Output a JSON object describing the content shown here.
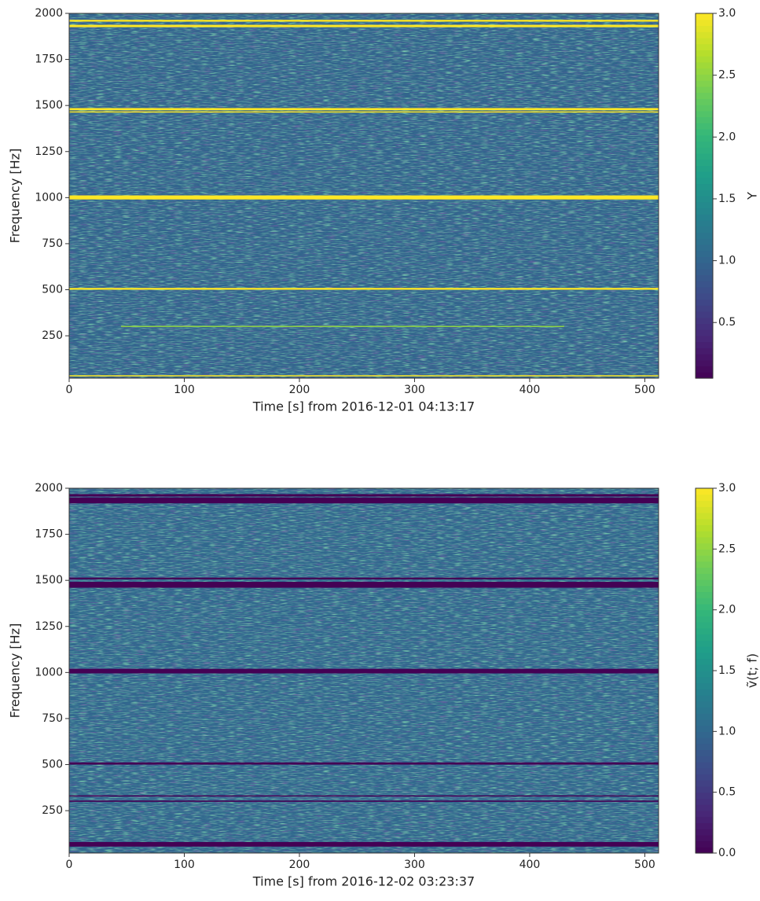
{
  "chart_data": [
    {
      "type": "spectrogram",
      "xlabel": "Time [s] from 2016-12-01 04:13:17",
      "ylabel": "Frequency [Hz]",
      "colorbar_label": "Y",
      "colormap": "viridis",
      "xlim": [
        0,
        512
      ],
      "xticks": [
        0,
        100,
        200,
        300,
        400,
        500
      ],
      "ylim": [
        20,
        2000
      ],
      "yticks": [
        250,
        500,
        750,
        1000,
        1250,
        1500,
        1750,
        2000
      ],
      "clim": [
        0.05,
        3
      ],
      "cticks": [
        0.5,
        {
          "value": 1,
          "label": "1.0"
        },
        1.5,
        {
          "value": 2,
          "label": "2.0"
        },
        2.5,
        {
          "value": 3,
          "label": "3.0"
        }
      ],
      "background_value": 1,
      "bands": [
        {
          "f0": 1955,
          "f1": 1965,
          "value": 3
        },
        {
          "f0": 1925,
          "f1": 1938,
          "value": 3
        },
        {
          "f0": 1474,
          "f1": 1486,
          "value": 3
        },
        {
          "f0": 1462,
          "f1": 1468,
          "value": 3
        },
        {
          "f0": 990,
          "f1": 1012,
          "value": 3
        },
        {
          "f0": 500,
          "f1": 510,
          "value": 3
        },
        {
          "f0": 299,
          "f1": 304,
          "value": 2.5,
          "t0": 45,
          "t1": 430
        },
        {
          "f0": 30,
          "f1": 36,
          "value": 3
        }
      ]
    },
    {
      "type": "spectrogram",
      "xlabel": "Time [s] from 2016-12-02 03:23:37",
      "ylabel": "Frequency [Hz]",
      "colorbar_label": "ṽ(t; f)",
      "colormap": "viridis",
      "xlim": [
        0,
        512
      ],
      "xticks": [
        0,
        100,
        200,
        300,
        400,
        500
      ],
      "ylim": [
        20,
        2000
      ],
      "yticks": [
        250,
        500,
        750,
        1000,
        1250,
        1500,
        1750,
        2000
      ],
      "clim": [
        0,
        3
      ],
      "cticks": [
        {
          "value": 0,
          "label": "0.0"
        },
        0.5,
        {
          "value": 1,
          "label": "1.0"
        },
        1.5,
        {
          "value": 2,
          "label": "2.0"
        },
        2.5,
        {
          "value": 3,
          "label": "3.0"
        }
      ],
      "background_value": 1,
      "bands": [
        {
          "f0": 1955,
          "f1": 1968,
          "value": 0
        },
        {
          "f0": 1918,
          "f1": 1950,
          "value": 0
        },
        {
          "f0": 1505,
          "f1": 1515,
          "value": 0
        },
        {
          "f0": 1460,
          "f1": 1492,
          "value": 0
        },
        {
          "f0": 995,
          "f1": 1020,
          "value": 0
        },
        {
          "f0": 500,
          "f1": 512,
          "value": 0
        },
        {
          "f0": 328,
          "f1": 333,
          "value": 0
        },
        {
          "f0": 298,
          "f1": 305,
          "value": 0
        },
        {
          "f0": 55,
          "f1": 80,
          "value": 0
        }
      ]
    }
  ]
}
